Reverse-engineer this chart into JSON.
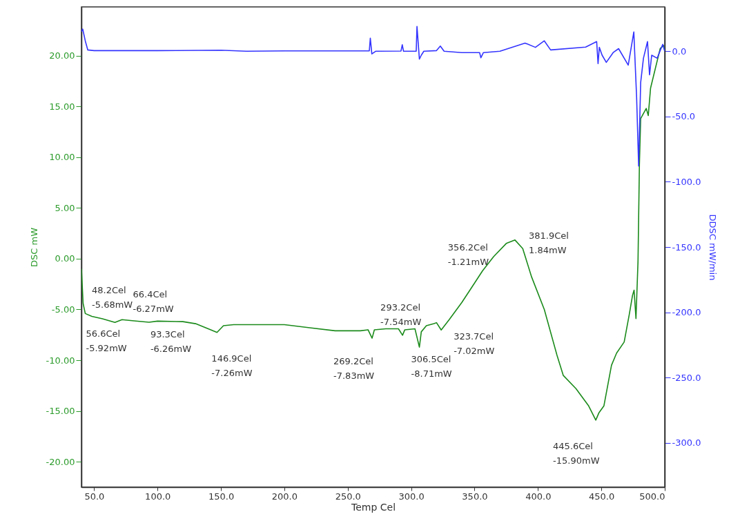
{
  "chart_data": {
    "type": "line",
    "xlabel": "Temp Cel",
    "ylabel": "DSC mW",
    "y2label": "DDSC mW/min",
    "xlim": [
      40,
      500
    ],
    "xticks": [
      {
        "value": 50,
        "label": "50.0"
      },
      {
        "value": 100,
        "label": "100.0"
      },
      {
        "value": 150,
        "label": "150.0"
      },
      {
        "value": 200,
        "label": "200.0"
      },
      {
        "value": 250,
        "label": "250.0"
      },
      {
        "value": 300,
        "label": "300.0"
      },
      {
        "value": 350,
        "label": "350.0"
      },
      {
        "value": 400,
        "label": "400.0"
      },
      {
        "value": 450,
        "label": "450.0"
      },
      {
        "value": 500,
        "label": "500.0"
      }
    ],
    "ylim": [
      -22.5,
      24.8
    ],
    "yticks": [
      {
        "value": -20,
        "label": "-20.00"
      },
      {
        "value": -15,
        "label": "-15.00"
      },
      {
        "value": -10,
        "label": "-10.00"
      },
      {
        "value": -5,
        "label": "-5.00"
      },
      {
        "value": 0,
        "label": "0.00"
      },
      {
        "value": 5,
        "label": "5.00"
      },
      {
        "value": 10,
        "label": "10.00"
      },
      {
        "value": 15,
        "label": "15.00"
      },
      {
        "value": 20,
        "label": "20.00"
      }
    ],
    "y2lim": [
      -334,
      34
    ],
    "y2ticks": [
      {
        "value": -300,
        "label": "-300.0"
      },
      {
        "value": -250,
        "label": "-250.0"
      },
      {
        "value": -200,
        "label": "-200.0"
      },
      {
        "value": -150,
        "label": "-150.0"
      },
      {
        "value": -100,
        "label": "-100.0"
      },
      {
        "value": -50,
        "label": "-50.0"
      },
      {
        "value": 0,
        "label": "0.0"
      }
    ],
    "series": [
      {
        "color": "#1a8a1a",
        "x": [
          40,
          41.3,
          43,
          48.2,
          56.6,
          66.4,
          72,
          80,
          93.3,
          100,
          120,
          130,
          140,
          146.9,
          152,
          160,
          200,
          220,
          240,
          260,
          266,
          269.2,
          271,
          280,
          290,
          293.2,
          295,
          303,
          306.5,
          308,
          312,
          318,
          320,
          323.7,
          330,
          340,
          350,
          356.2,
          365,
          375,
          381.9,
          388,
          395,
          405,
          415,
          420,
          430,
          440,
          445.6,
          448,
          452,
          458,
          462,
          468,
          472,
          474.6,
          475.8,
          477.3,
          478.9,
          480,
          481,
          485.4,
          487,
          488.8,
          496.4,
          499,
          500
        ],
        "values": [
          -1.0,
          -4.4,
          -5.4,
          -5.68,
          -5.92,
          -6.27,
          -6.0,
          -6.1,
          -6.26,
          -6.15,
          -6.2,
          -6.4,
          -6.9,
          -7.26,
          -6.6,
          -6.5,
          -6.5,
          -6.8,
          -7.1,
          -7.1,
          -7.0,
          -7.83,
          -7.0,
          -6.9,
          -6.9,
          -7.54,
          -7.0,
          -6.9,
          -8.71,
          -7.2,
          -6.6,
          -6.4,
          -6.3,
          -7.02,
          -6.0,
          -4.3,
          -2.4,
          -1.21,
          0.2,
          1.5,
          1.84,
          1.0,
          -1.8,
          -5.0,
          -9.5,
          -11.5,
          -12.8,
          -14.5,
          -15.9,
          -15.2,
          -14.5,
          -10.5,
          -9.3,
          -8.2,
          -5.5,
          -3.6,
          -3.1,
          -5.9,
          -0.3,
          9.2,
          13.8,
          14.8,
          14.1,
          16.8,
          20.7,
          21.0,
          20.5
        ]
      },
      {
        "color": "#3333ff",
        "axis": "y2",
        "x": [
          40,
          41,
          43,
          45,
          50,
          100,
          150,
          170,
          200,
          267,
          267.8,
          269,
          272,
          292,
          293,
          294,
          304,
          304.6,
          306.5,
          308,
          310,
          320,
          323,
          326,
          340,
          354,
          355,
          357,
          370,
          389.8,
          398,
          405,
          410,
          437.6,
          446.3,
          447.4,
          448.4,
          450.6,
          453.9,
          459.3,
          463.6,
          471.2,
          475.6,
          477.8,
          479.4,
          481,
          483.2,
          486.4,
          488,
          489.7,
          494,
          498.4,
          500
        ],
        "values": [
          15,
          17,
          8,
          1,
          0.5,
          0.5,
          0.8,
          0,
          0.3,
          0.3,
          10,
          -2,
          0,
          0.2,
          5,
          0,
          0,
          19,
          -6,
          -3,
          0,
          0.5,
          4,
          0,
          -1,
          -1,
          -5,
          -1,
          0,
          6.3,
          3,
          8,
          1,
          3.2,
          7.4,
          -9.5,
          3,
          -3,
          -8.5,
          -1,
          2,
          -10.6,
          14.8,
          -35,
          -88,
          -24,
          -5.3,
          7.4,
          -18,
          -3,
          -5.3,
          5.3,
          0
        ]
      }
    ],
    "annotations": [
      {
        "text": "48.2Cel\n-5.68mW",
        "x": 48.2,
        "y": -5.68
      },
      {
        "text": "56.6Cel\n-5.92mW",
        "x": 56.6,
        "y": -5.92
      },
      {
        "text": "66.4Cel\n-6.27mW",
        "x": 66.4,
        "y": -6.27
      },
      {
        "text": "93.3Cel\n-6.26mW",
        "x": 93.3,
        "y": -6.26
      },
      {
        "text": "146.9Cel\n-7.26mW",
        "x": 146.9,
        "y": -7.26
      },
      {
        "text": "269.2Cel\n-7.83mW",
        "x": 269.2,
        "y": -7.83
      },
      {
        "text": "293.2Cel\n-7.54mW",
        "x": 293.2,
        "y": -7.54
      },
      {
        "text": "306.5Cel\n-8.71mW",
        "x": 306.5,
        "y": -8.71
      },
      {
        "text": "323.7Cel\n-7.02mW",
        "x": 323.7,
        "y": -7.02
      },
      {
        "text": "356.2Cel\n-1.21mW",
        "x": 356.2,
        "y": -1.21
      },
      {
        "text": "381.9Cel\n1.84mW",
        "x": 381.9,
        "y": 1.84
      },
      {
        "text": "445.6Cel\n-15.90mW",
        "x": 445.6,
        "y": -15.9
      }
    ]
  }
}
